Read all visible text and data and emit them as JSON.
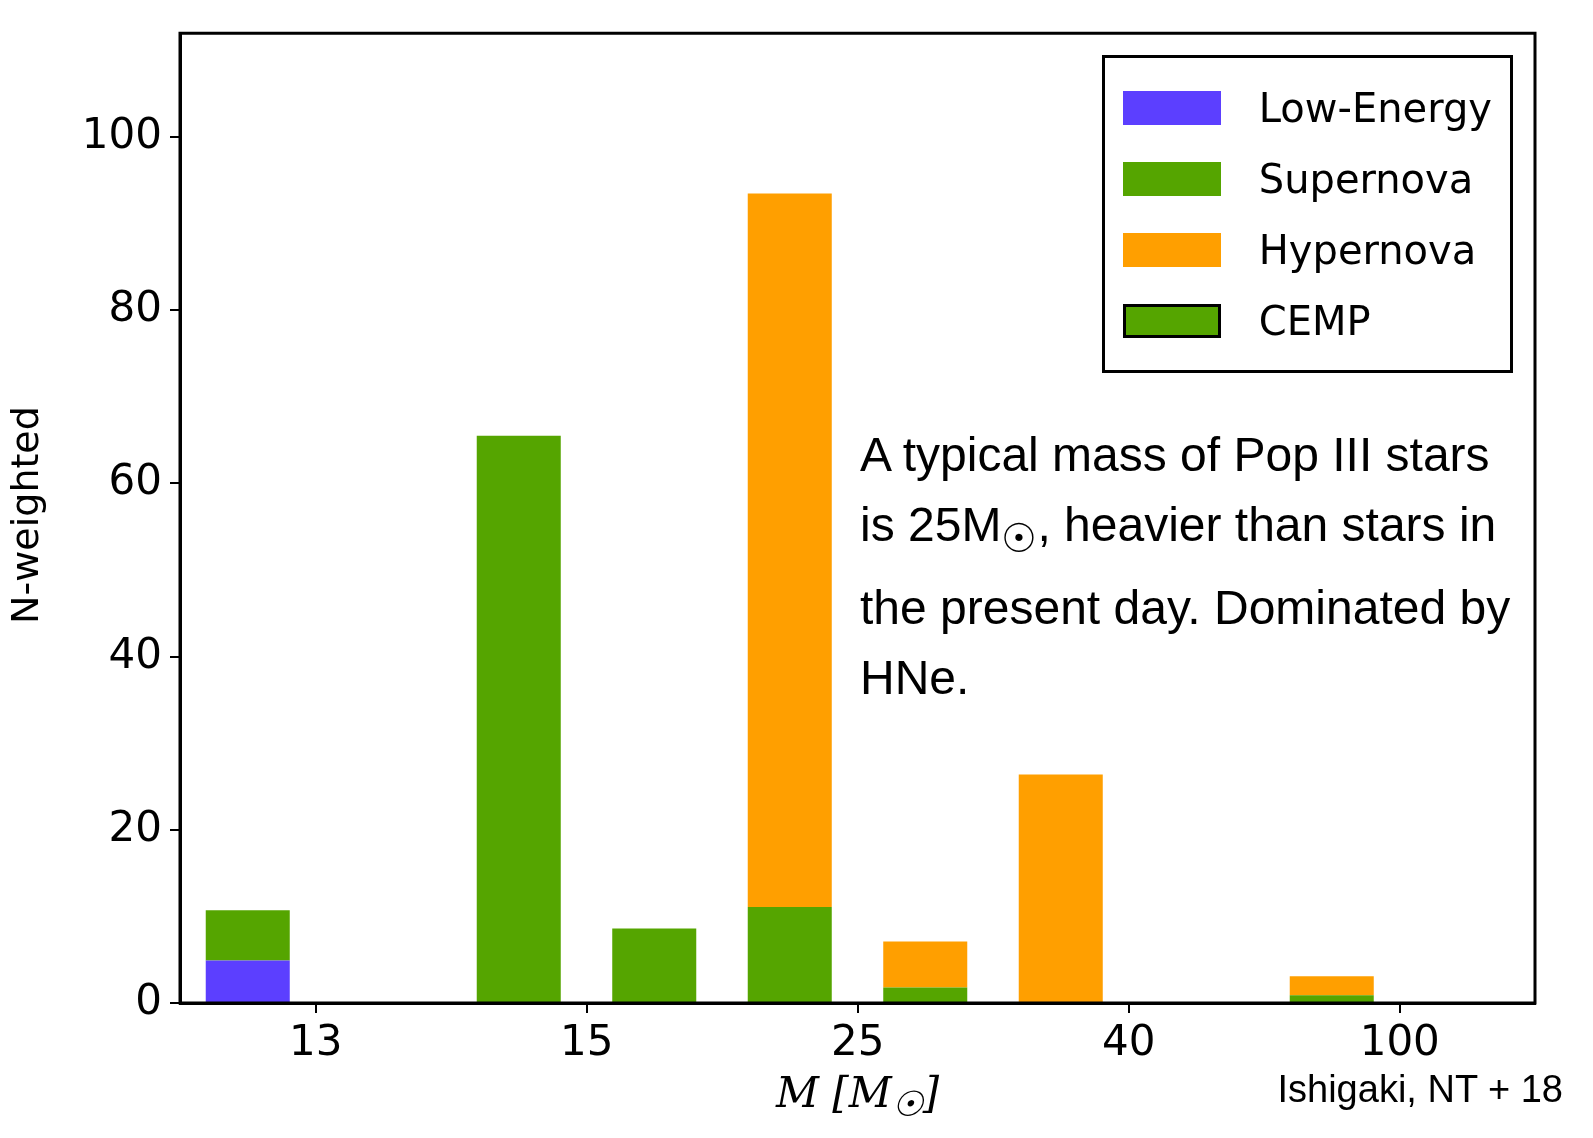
{
  "chart_data": {
    "type": "bar",
    "stacked": true,
    "xlabel": "M [M$_{☉}$]",
    "ylabel": "N-weighted",
    "categories": [
      "13",
      null,
      "15",
      null,
      "25",
      null,
      "40",
      null,
      "100",
      null
    ],
    "ylim": [
      0,
      112
    ],
    "yticks": [
      0,
      20,
      40,
      60,
      80,
      100
    ],
    "grid": false,
    "legend": "top right",
    "series": [
      {
        "name": "Low-Energy",
        "color": "#5c3fff",
        "values": [
          4.9,
          null,
          0,
          null,
          0,
          null,
          0,
          null,
          0,
          null
        ]
      },
      {
        "name": "Supernova",
        "color": "#55a500",
        "values": [
          5.8,
          null,
          65.5,
          null,
          11.1,
          null,
          0,
          null,
          0.9,
          null
        ]
      },
      {
        "name": "Hypernova",
        "color": "#ff9f00",
        "values": [
          0,
          null,
          0,
          null,
          82.4,
          null,
          26.4,
          null,
          2.2,
          null
        ]
      },
      {
        "name": "CEMP",
        "color": "#55a500",
        "values": [
          null,
          0,
          null,
          8.6,
          null,
          1.8,
          null,
          0,
          null,
          0
        ]
      },
      {
        "color": "#ff9f00",
        "values": [
          null,
          0,
          null,
          0,
          null,
          5.3,
          null,
          0,
          null,
          0
        ]
      }
    ],
    "annotations": [
      "A typical mass of Pop III stars is 25M$_{☉}$, heavier than stars in the present day. Dominated by HNe.",
      "Ishigaki, NT + 18"
    ]
  }
}
